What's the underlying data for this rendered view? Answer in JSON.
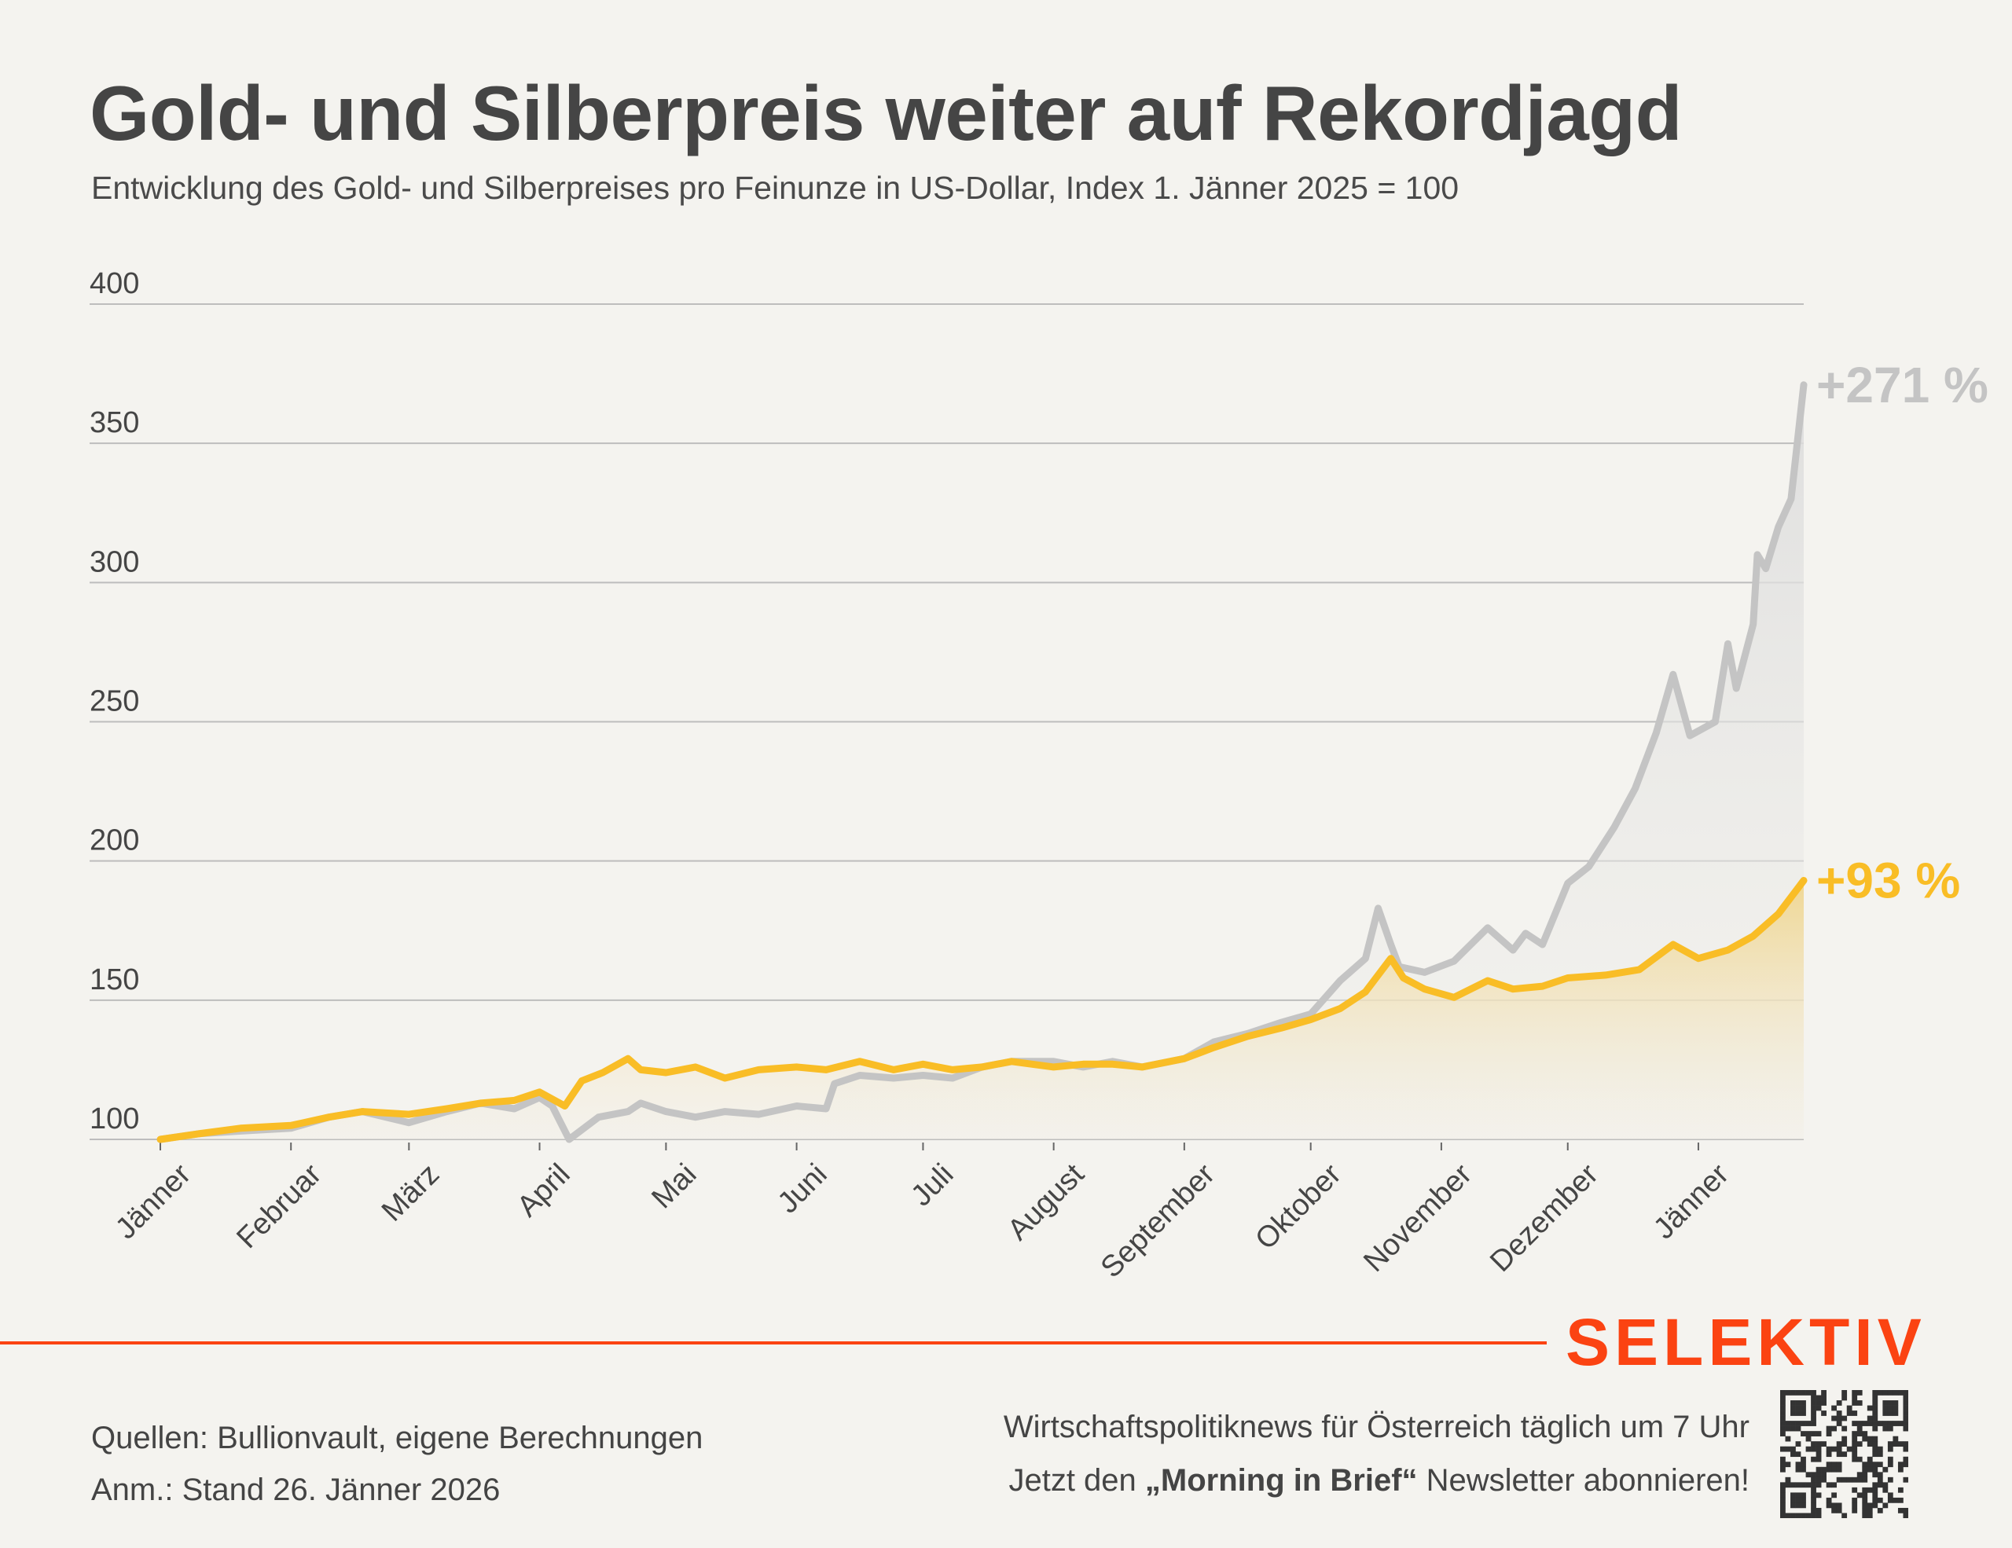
{
  "title": "Gold- und Silberpreis weiter auf Rekordjagd",
  "subtitle": "Entwicklung des Gold- und Silberpreises pro Feinunze in US-Dollar, Index 1. Jänner 2025 = 100",
  "colors": {
    "gold": "#f9bd26",
    "silver": "#c4c4c4",
    "brand": "#fb4312",
    "text": "#454545",
    "background": "#f4f3ef"
  },
  "chart_data": {
    "type": "area",
    "title": "Gold- und Silberpreis weiter auf Rekordjagd",
    "ylim": [
      100,
      400
    ],
    "yticks": [
      100,
      150,
      200,
      250,
      300,
      350,
      400
    ],
    "grid": true,
    "xticks": [
      {
        "date": "2025-01-01",
        "label": "Jänner"
      },
      {
        "date": "2025-02-01",
        "label": "Februar"
      },
      {
        "date": "2025-03-01",
        "label": "März"
      },
      {
        "date": "2025-04-01",
        "label": "April"
      },
      {
        "date": "2025-05-01",
        "label": "Mai"
      },
      {
        "date": "2025-06-01",
        "label": "Juni"
      },
      {
        "date": "2025-07-01",
        "label": "Juli"
      },
      {
        "date": "2025-08-01",
        "label": "August"
      },
      {
        "date": "2025-09-01",
        "label": "September"
      },
      {
        "date": "2025-10-01",
        "label": "Oktober"
      },
      {
        "date": "2025-11-01",
        "label": "November"
      },
      {
        "date": "2025-12-01",
        "label": "Dezember"
      },
      {
        "date": "2026-01-01",
        "label": "Jänner"
      }
    ],
    "xlim": [
      "2025-01-01",
      "2026-01-26"
    ],
    "series": [
      {
        "key": "silver",
        "end_label": "+271 %",
        "points": [
          [
            "2025-01-01",
            100
          ],
          [
            "2025-01-10",
            102
          ],
          [
            "2025-01-20",
            103
          ],
          [
            "2025-02-01",
            104
          ],
          [
            "2025-02-10",
            108
          ],
          [
            "2025-02-18",
            110
          ],
          [
            "2025-03-01",
            106
          ],
          [
            "2025-03-10",
            110
          ],
          [
            "2025-03-18",
            113
          ],
          [
            "2025-03-26",
            111
          ],
          [
            "2025-04-01",
            115
          ],
          [
            "2025-04-04",
            112
          ],
          [
            "2025-04-08",
            100
          ],
          [
            "2025-04-15",
            108
          ],
          [
            "2025-04-22",
            110
          ],
          [
            "2025-04-25",
            113
          ],
          [
            "2025-05-01",
            110
          ],
          [
            "2025-05-08",
            108
          ],
          [
            "2025-05-15",
            110
          ],
          [
            "2025-05-23",
            109
          ],
          [
            "2025-06-01",
            112
          ],
          [
            "2025-06-08",
            111
          ],
          [
            "2025-06-10",
            120
          ],
          [
            "2025-06-16",
            123
          ],
          [
            "2025-06-24",
            122
          ],
          [
            "2025-07-01",
            123
          ],
          [
            "2025-07-08",
            122
          ],
          [
            "2025-07-15",
            126
          ],
          [
            "2025-07-22",
            128
          ],
          [
            "2025-08-01",
            128
          ],
          [
            "2025-08-08",
            126
          ],
          [
            "2025-08-15",
            128
          ],
          [
            "2025-08-22",
            126
          ],
          [
            "2025-09-01",
            129
          ],
          [
            "2025-09-08",
            135
          ],
          [
            "2025-09-16",
            138
          ],
          [
            "2025-09-24",
            142
          ],
          [
            "2025-10-01",
            145
          ],
          [
            "2025-10-08",
            157
          ],
          [
            "2025-10-14",
            165
          ],
          [
            "2025-10-17",
            183
          ],
          [
            "2025-10-20",
            170
          ],
          [
            "2025-10-22",
            162
          ],
          [
            "2025-10-28",
            160
          ],
          [
            "2025-11-04",
            164
          ],
          [
            "2025-11-12",
            176
          ],
          [
            "2025-11-18",
            168
          ],
          [
            "2025-11-21",
            174
          ],
          [
            "2025-11-25",
            170
          ],
          [
            "2025-12-01",
            192
          ],
          [
            "2025-12-06",
            198
          ],
          [
            "2025-12-12",
            212
          ],
          [
            "2025-12-17",
            226
          ],
          [
            "2025-12-22",
            246
          ],
          [
            "2025-12-26",
            267
          ],
          [
            "2025-12-30",
            245
          ],
          [
            "2026-01-05",
            250
          ],
          [
            "2026-01-08",
            278
          ],
          [
            "2026-01-10",
            262
          ],
          [
            "2026-01-14",
            285
          ],
          [
            "2026-01-15",
            310
          ],
          [
            "2026-01-17",
            305
          ],
          [
            "2026-01-20",
            320
          ],
          [
            "2026-01-23",
            330
          ],
          [
            "2026-01-26",
            371
          ]
        ]
      },
      {
        "key": "gold",
        "end_label": "+93 %",
        "points": [
          [
            "2025-01-01",
            100
          ],
          [
            "2025-01-10",
            102
          ],
          [
            "2025-01-20",
            104
          ],
          [
            "2025-02-01",
            105
          ],
          [
            "2025-02-10",
            108
          ],
          [
            "2025-02-18",
            110
          ],
          [
            "2025-03-01",
            109
          ],
          [
            "2025-03-10",
            111
          ],
          [
            "2025-03-18",
            113
          ],
          [
            "2025-03-26",
            114
          ],
          [
            "2025-04-01",
            117
          ],
          [
            "2025-04-07",
            112
          ],
          [
            "2025-04-11",
            121
          ],
          [
            "2025-04-16",
            124
          ],
          [
            "2025-04-22",
            129
          ],
          [
            "2025-04-25",
            125
          ],
          [
            "2025-05-01",
            124
          ],
          [
            "2025-05-08",
            126
          ],
          [
            "2025-05-15",
            122
          ],
          [
            "2025-05-23",
            125
          ],
          [
            "2025-06-01",
            126
          ],
          [
            "2025-06-08",
            125
          ],
          [
            "2025-06-16",
            128
          ],
          [
            "2025-06-24",
            125
          ],
          [
            "2025-07-01",
            127
          ],
          [
            "2025-07-08",
            125
          ],
          [
            "2025-07-15",
            126
          ],
          [
            "2025-07-22",
            128
          ],
          [
            "2025-08-01",
            126
          ],
          [
            "2025-08-08",
            127
          ],
          [
            "2025-08-15",
            127
          ],
          [
            "2025-08-22",
            126
          ],
          [
            "2025-09-01",
            129
          ],
          [
            "2025-09-08",
            133
          ],
          [
            "2025-09-16",
            137
          ],
          [
            "2025-09-24",
            140
          ],
          [
            "2025-10-01",
            143
          ],
          [
            "2025-10-08",
            147
          ],
          [
            "2025-10-14",
            153
          ],
          [
            "2025-10-20",
            165
          ],
          [
            "2025-10-23",
            158
          ],
          [
            "2025-10-28",
            154
          ],
          [
            "2025-11-04",
            151
          ],
          [
            "2025-11-12",
            157
          ],
          [
            "2025-11-18",
            154
          ],
          [
            "2025-11-25",
            155
          ],
          [
            "2025-12-01",
            158
          ],
          [
            "2025-12-10",
            159
          ],
          [
            "2025-12-18",
            161
          ],
          [
            "2025-12-26",
            170
          ],
          [
            "2026-01-01",
            165
          ],
          [
            "2026-01-08",
            168
          ],
          [
            "2026-01-14",
            173
          ],
          [
            "2026-01-20",
            181
          ],
          [
            "2026-01-26",
            193
          ]
        ]
      }
    ]
  },
  "footer": {
    "sources": "Quellen: Bullionvault, eigene Berechnungen",
    "note": "Anm.: Stand 26. Jänner 2026",
    "promo_line1": "Wirtschaftspolitiknews für Österreich täglich um 7 Uhr",
    "promo_line2_pre": "Jetzt den ",
    "promo_line2_bold": "„Morning in Brief“",
    "promo_line2_post": " Newsletter abonnieren!",
    "logo": "SELEKTIV",
    "qr_icon": "qr-code-icon"
  }
}
